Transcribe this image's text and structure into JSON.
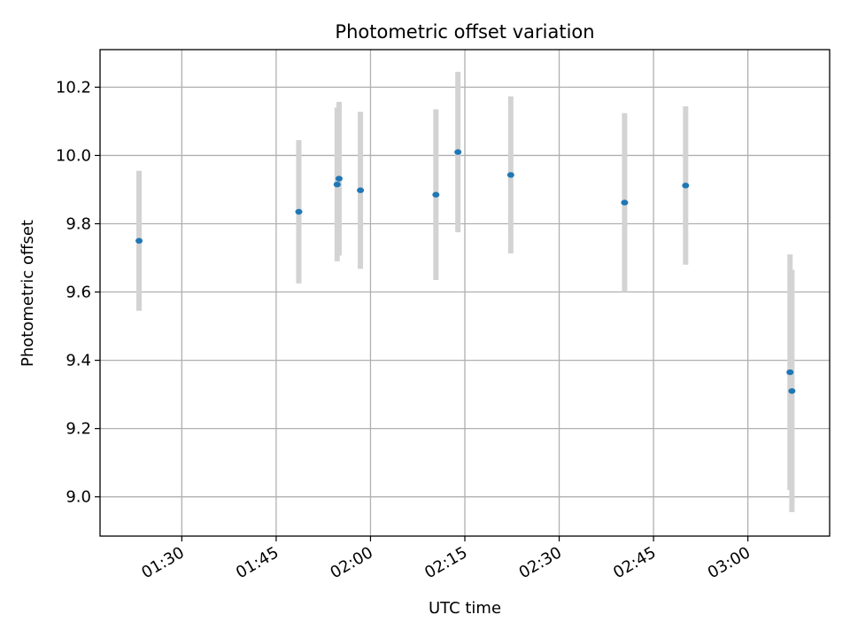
{
  "chart_data": {
    "type": "scatter",
    "title": "Photometric offset variation",
    "xlabel": "UTC time",
    "ylabel": "Photometric offset",
    "xlim": [
      "01:17",
      "03:13"
    ],
    "ylim": [
      8.885,
      10.31
    ],
    "grid": true,
    "x_ticks": [
      "01:30",
      "01:45",
      "02:00",
      "02:15",
      "02:30",
      "02:45",
      "03:00"
    ],
    "y_ticks": [
      "9.0",
      "9.2",
      "9.4",
      "9.6",
      "9.8",
      "10.0",
      "10.2"
    ],
    "series": [
      {
        "marker_color": "#1f77b4",
        "errorbar_color": "#d3d3d3",
        "points": [
          {
            "time": "01:23:12",
            "y": 9.75,
            "yerr": 0.205
          },
          {
            "time": "01:48:36",
            "y": 9.835,
            "yerr": 0.21
          },
          {
            "time": "01:54:42",
            "y": 9.915,
            "yerr": 0.225
          },
          {
            "time": "01:55:00",
            "y": 9.932,
            "yerr": 0.225
          },
          {
            "time": "01:58:24",
            "y": 9.898,
            "yerr": 0.23
          },
          {
            "time": "02:10:24",
            "y": 9.885,
            "yerr": 0.25
          },
          {
            "time": "02:13:54",
            "y": 10.01,
            "yerr": 0.235
          },
          {
            "time": "02:22:18",
            "y": 9.943,
            "yerr": 0.23
          },
          {
            "time": "02:40:24",
            "y": 9.862,
            "yerr": 0.262
          },
          {
            "time": "02:50:06",
            "y": 9.912,
            "yerr": 0.232
          },
          {
            "time": "03:06:42",
            "y": 9.365,
            "yerr": 0.345
          },
          {
            "time": "03:07:00",
            "y": 9.31,
            "yerr": 0.355
          }
        ]
      }
    ]
  }
}
